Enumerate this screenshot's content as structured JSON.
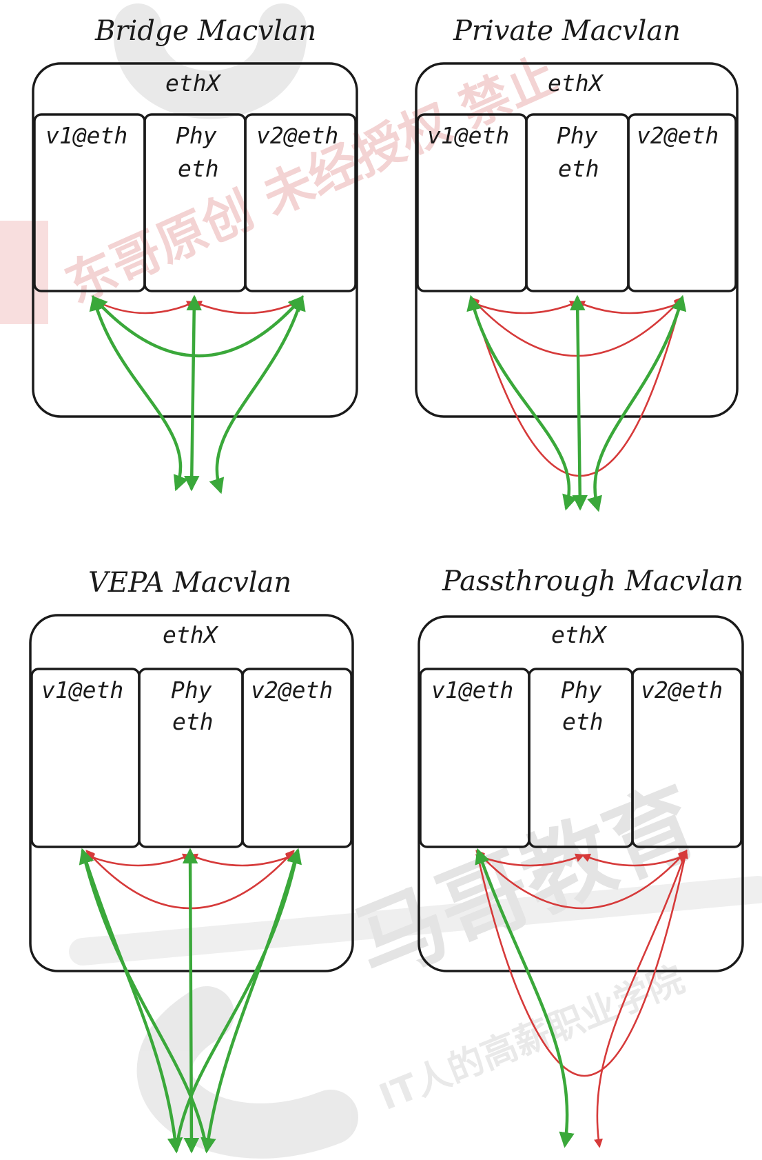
{
  "panels": [
    {
      "title": "Bridge Macvlan",
      "interface": "ethX",
      "slots": [
        "v1@eth",
        "Phy",
        "eth",
        "v2@eth"
      ]
    },
    {
      "title": "Private Macvlan",
      "interface": "ethX",
      "slots": [
        "v1@eth",
        "Phy",
        "eth",
        "v2@eth"
      ]
    },
    {
      "title": "VEPA Macvlan",
      "interface": "ethX",
      "slots": [
        "v1@eth",
        "Phy",
        "eth",
        "v2@eth"
      ]
    },
    {
      "title": "Passthrough Macvlan",
      "interface": "ethX",
      "slots": [
        "v1@eth",
        "Phy",
        "eth",
        "v2@eth"
      ]
    }
  ],
  "colors": {
    "outline": "#1a1a1a",
    "external_path": "#3aa83a",
    "internal_path": "#d63a3a",
    "watermark_red": "#e8a8a8",
    "watermark_gray": "#d6d6d6"
  },
  "watermark": {
    "lines": [
      "东哥原创 未经授权 禁止",
      "马哥教育",
      "IT人的高薪职业学院"
    ]
  }
}
